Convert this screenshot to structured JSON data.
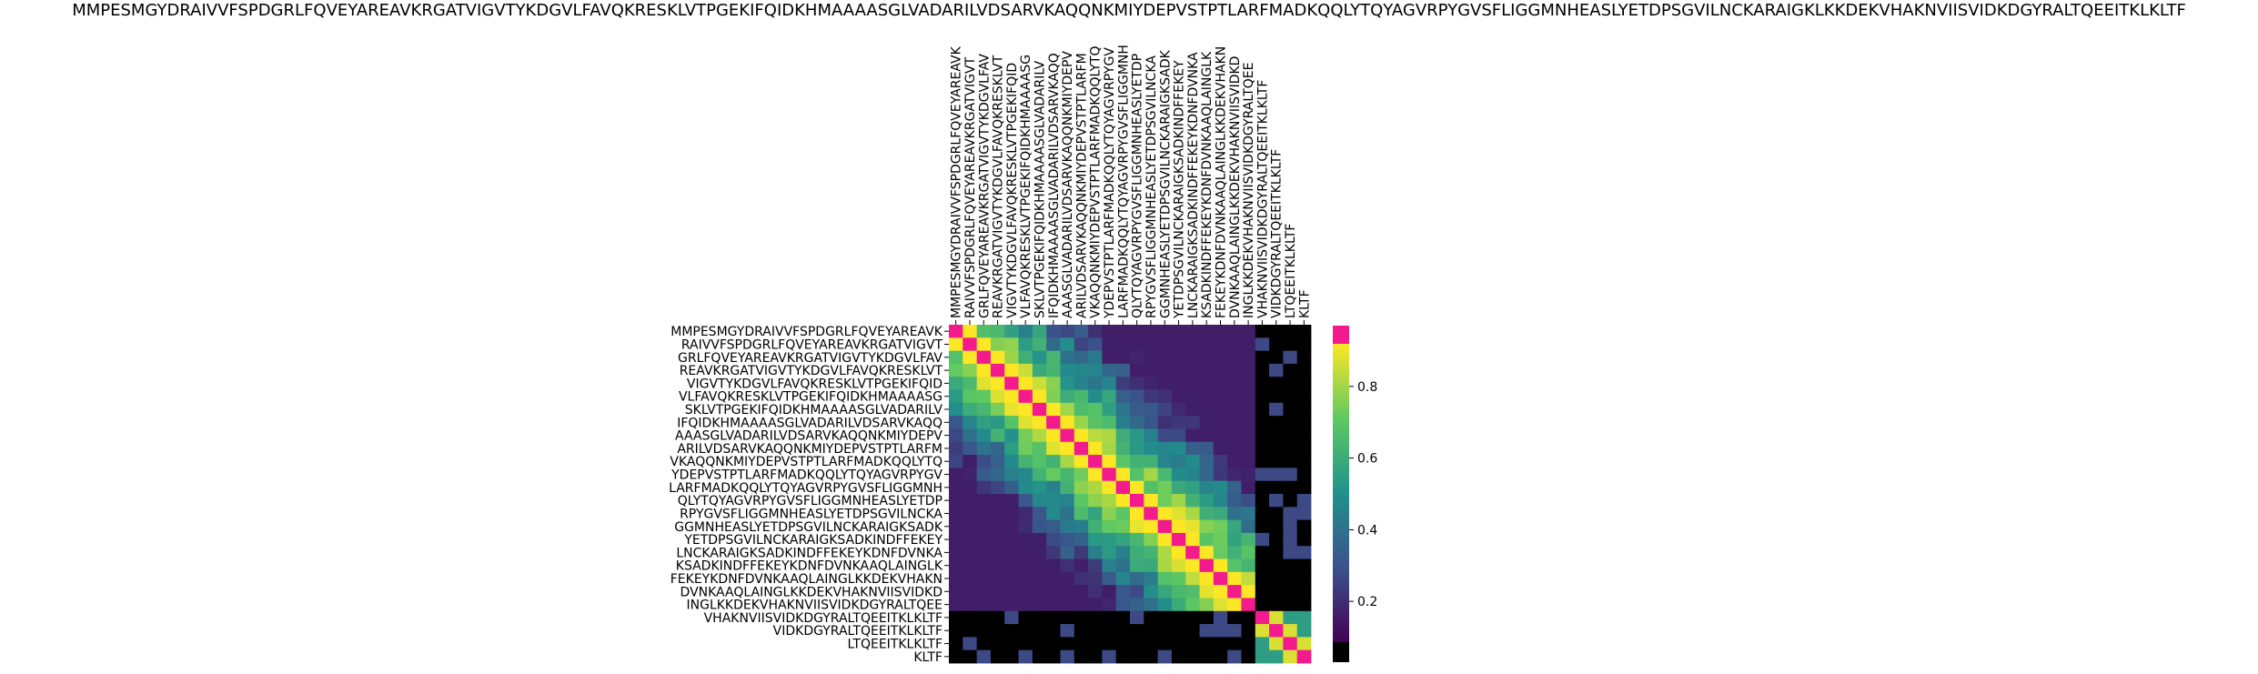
{
  "title": "MMPESMGYDRAIVVFSPDGRLFQVEYAREAVKRGATVIGVTYKDGVLFAVQKRESKLVTPGEKIFQIDKHMAAAASGLVADARILVDSARVKAQQNKMIYDEPVSTPTLARFMADKQQLYTQYAGVRPYGVSFLIGGMNHEASLYETDPSGVILNCKARAIGKLKKDEKVHAKNVIISVIDKDGYRALTQEEITKLKLTF",
  "colors": {
    "diag": "#f21a8c",
    "low": "#000000",
    "colormap": [
      "#440154",
      "#3b528b",
      "#21918c",
      "#5ec962",
      "#fde725"
    ]
  },
  "chart_data": {
    "type": "heatmap",
    "title": "MMPESMGYDRAIVVFSPDGRLFQVEYAREAVKRGATVIGVTYKDGVLFAVQKRESKLVTPGEKIFQIDKHMAAAASGLVADARILVDSARVKAQQNKMIYDEPVSTPTLARFMADKQQLYTQYAGVRPYGVSFLIGGMNHEASLYETDPSGVILNCKARAIGKLKKDEKVHAKNVIISVIDKDGYRALTQEEITKLKLTF",
    "xticklabels": [
      "MMPESMGYDRAIVVFSPDGRLFQVEYAREAVK",
      "RAIVVFSPDGRLFQVEYAREAVKRGATVIGVT",
      "GRLFQVEYAREAVKRGATVIGVTYKDGVLFAV",
      "REAVKRGATVIGVTYKDGVLFAVQKRESKLVT",
      "VIGVTYKDGVLFAVQKRESKLVTPGEKIFQID",
      "VLFAVQKRESKLVTPGEKIFQIDKHMAAAASG",
      "SKLVTPGEKIFQIDKHMAAAASGLVADARILV",
      "IFQIDKHMAAAASGLVADARILVDSARVKAQQ",
      "AAASGLVADARILVDSARVKAQQNKMIYDEPV",
      "ARILVDSARVKAQQNKMIYDEPVSTPTLARFM",
      "VKAQQNKMIYDEPVSTPTLARFMADKQQLYTQ",
      "YDEPVSTPTLARFMADKQQLYTQYAGVRPYGV",
      "LARFMADKQQLYTQYAGVRPYGVSFLIGGMNH",
      "QLYTQYAGVRPYGVSFLIGGMNHEASLYETDP",
      "RPYGVSFLIGGMNHEASLYETDPSGVILNCKA",
      "GGMNHEASLYETDPSGVILNCKARAIGKSADK",
      "YETDPSGVILNCKARAIGKSADKINDFFEKEY",
      "LNCKARAIGKSADKINDFFEKEYKDNFDVNKA",
      "KSADKINDFFEKEYKDNFDVNKAAQLAINGLK",
      "FEKEYKDNFDVNKAAQLAINGLKKDEKVHAKN",
      "DVNKAAQLAINGLKKDEKVHAKNVIISVIDKD",
      "INGLKKDEKVHAKNVIISVIDKDGYRALTQEE",
      "VHAKNVIISVIDKDGYRALTQEEITKLKLTF",
      "VIDKDGYRALTQEEITKLKLTF",
      "LTQEEITKLKLTF",
      "KLTF"
    ],
    "yticklabels": [
      "MMPESMGYDRAIVVFSPDGRLFQVEYAREAVK",
      "RAIVVFSPDGRLFQVEYAREAVKRGATVIGVT",
      "GRLFQVEYAREAVKRGATVIGVTYKDGVLFAV",
      "REAVKRGATVIGVTYKDGVLFAVQKRESKLVT",
      "VIGVTYKDGVLFAVQKRESKLVTPGEKIFQID",
      "VLFAVQKRESKLVTPGEKIFQIDKHMAAAASG",
      "SKLVTPGEKIFQIDKHMAAAASGLVADARILV",
      "IFQIDKHMAAAASGLVADARILVDSARVKAQQ",
      "AAASGLVADARILVDSARVKAQQNKMIYDEPV",
      "ARILVDSARVKAQQNKMIYDEPVSTPTLARFM",
      "VKAQQNKMIYDEPVSTPTLARFMADKQQLYTQ",
      "YDEPVSTPTLARFMADKQQLYTQYAGVRPYGV",
      "LARFMADKQQLYTQYAGVRPYGVSFLIGGMNH",
      "QLYTQYAGVRPYGVSFLIGGMNHEASLYETDP",
      "RPYGVSFLIGGMNHEASLYETDPSGVILNCKA",
      "GGMNHEASLYETDPSGVILNCKARAIGKSADK",
      "YETDPSGVILNCKARAIGKSADKINDFFEKEY",
      "LNCKARAIGKSADKINDFFEKEYKDNFDVNKA",
      "KSADKINDFFEKEYKDNFDVNKAAQLAINGLK",
      "FEKEYKDNFDVNKAAQLAINGLKKDEKVHAKN",
      "DVNKAAQLAINGLKKDEKVHAKNVIISVIDKD",
      "INGLKKDEKVHAKNVIISVIDKDGYRALTQEE",
      "VHAKNVIISVIDKDGYRALTQEEITKLKLTF",
      "VIDKDGYRALTQEEITKLKLTF",
      "LTQEEITKLKLTF",
      "KLTF"
    ],
    "colorbar": {
      "ticks": [
        0.2,
        0.4,
        0.6,
        0.8
      ],
      "range": [
        0,
        1
      ]
    }
  }
}
